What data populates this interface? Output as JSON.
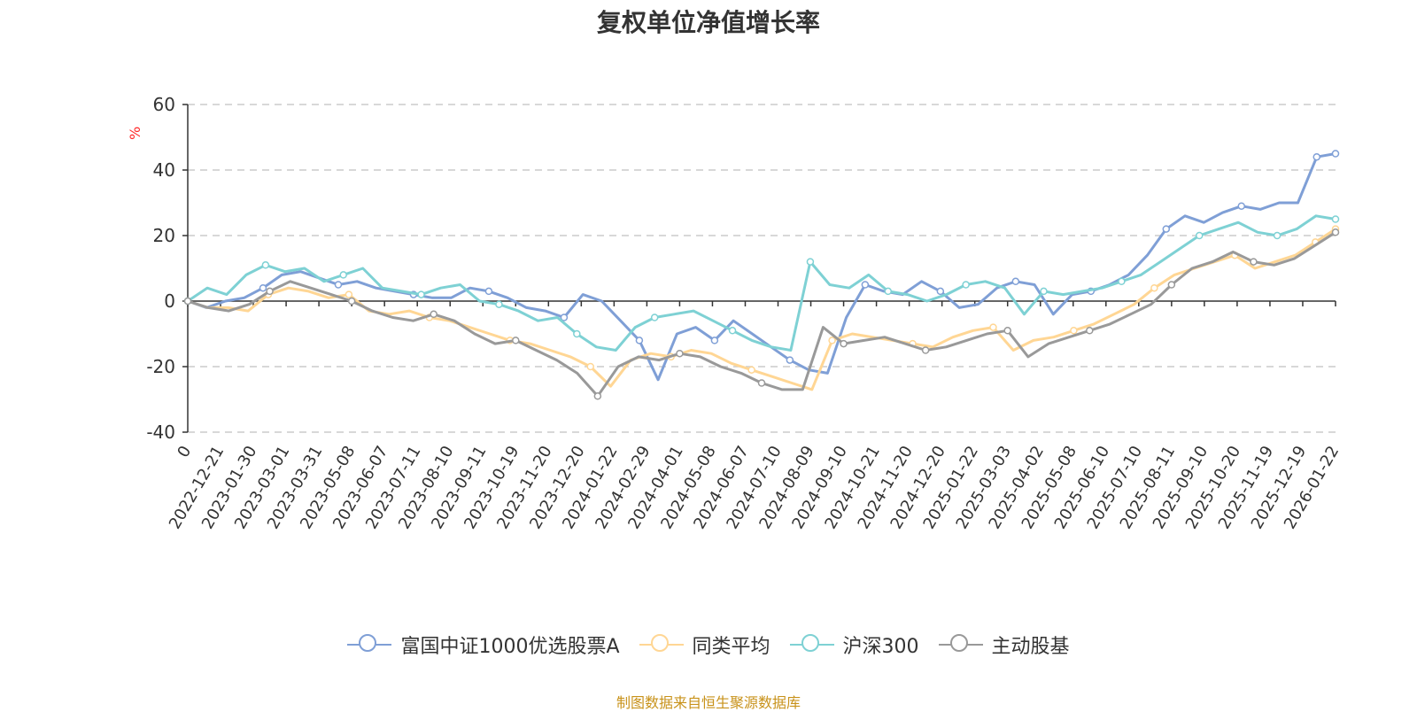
{
  "chart_data": {
    "type": "line",
    "title": "复权单位净值增长率",
    "xlabel": "",
    "ylabel": "%",
    "ylim": [
      -40,
      60
    ],
    "yticks": [
      -40,
      -20,
      0,
      20,
      40,
      60
    ],
    "grid": true,
    "legend_position": "bottom",
    "x_tick_labels": [
      "0",
      "2022-12-21",
      "2023-01-30",
      "2023-03-01",
      "2023-03-31",
      "2023-05-08",
      "2023-06-07",
      "2023-07-11",
      "2023-08-10",
      "2023-09-11",
      "2023-10-19",
      "2023-11-20",
      "2023-12-20",
      "2024-01-22",
      "2024-02-29",
      "2024-04-01",
      "2024-05-08",
      "2024-06-07",
      "2024-07-10",
      "2024-08-09",
      "2024-09-10",
      "2024-10-21",
      "2024-11-20",
      "2024-12-20",
      "2025-01-22",
      "2025-03-03",
      "2025-04-02",
      "2025-05-08",
      "2025-06-10",
      "2025-07-10",
      "2025-08-11",
      "2025-09-10",
      "2025-10-20",
      "2025-11-19",
      "2025-12-19",
      "2026-01-22"
    ],
    "series": [
      {
        "name": "富国中证1000优选股票A",
        "color": "#7f9fd6",
        "values": [
          0,
          -2,
          0,
          1,
          4,
          8,
          9,
          7,
          5,
          6,
          4,
          3,
          2,
          1,
          1,
          4,
          3,
          1,
          -2,
          -3,
          -5,
          2,
          0,
          -6,
          -12,
          -24,
          -10,
          -8,
          -12,
          -6,
          -10,
          -14,
          -18,
          -21,
          -22,
          -5,
          5,
          3,
          2,
          6,
          3,
          -2,
          -1,
          4,
          6,
          5,
          -4,
          2,
          3,
          5,
          8,
          14,
          22,
          26,
          24,
          27,
          29,
          28,
          30,
          30,
          44,
          45
        ]
      },
      {
        "name": "同类平均",
        "color": "#ffd694",
        "values": [
          0,
          -2,
          -2,
          -3,
          2,
          4,
          3,
          1,
          2,
          -3,
          -4,
          -3,
          -5,
          -6,
          -8,
          -10,
          -12,
          -13,
          -15,
          -17,
          -20,
          -26,
          -18,
          -16,
          -17,
          -15,
          -16,
          -19,
          -21,
          -23,
          -25,
          -27,
          -12,
          -10,
          -11,
          -12,
          -13,
          -14,
          -11,
          -9,
          -8,
          -15,
          -12,
          -11,
          -9,
          -7,
          -4,
          -1,
          4,
          8,
          10,
          12,
          14,
          10,
          12,
          14,
          18,
          22
        ]
      },
      {
        "name": "沪深300",
        "color": "#7ed1d4",
        "values": [
          0,
          4,
          2,
          8,
          11,
          9,
          10,
          6,
          8,
          10,
          4,
          3,
          2,
          4,
          5,
          0,
          -1,
          -3,
          -6,
          -5,
          -10,
          -14,
          -15,
          -8,
          -5,
          -4,
          -3,
          -6,
          -9,
          -12,
          -14,
          -15,
          12,
          5,
          4,
          8,
          3,
          2,
          0,
          2,
          5,
          6,
          4,
          -4,
          3,
          2,
          3,
          4,
          6,
          8,
          12,
          16,
          20,
          22,
          24,
          21,
          20,
          22,
          26,
          25
        ]
      },
      {
        "name": "主动股基",
        "color": "#999999",
        "values": [
          0,
          -2,
          -3,
          -1,
          3,
          6,
          4,
          2,
          0,
          -3,
          -5,
          -6,
          -4,
          -6,
          -10,
          -13,
          -12,
          -15,
          -18,
          -22,
          -29,
          -20,
          -17,
          -18,
          -16,
          -17,
          -20,
          -22,
          -25,
          -27,
          -27,
          -8,
          -13,
          -12,
          -11,
          -13,
          -15,
          -14,
          -12,
          -10,
          -9,
          -17,
          -13,
          -11,
          -9,
          -7,
          -4,
          -1,
          5,
          10,
          12,
          15,
          12,
          11,
          13,
          17,
          21
        ]
      }
    ]
  },
  "source_text": "制图数据来自恒生聚源数据库"
}
